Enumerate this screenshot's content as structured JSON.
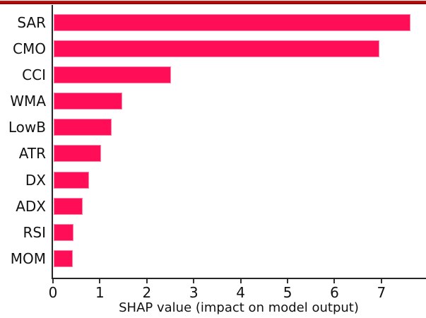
{
  "chart_data": {
    "type": "bar",
    "orientation": "horizontal",
    "title": "",
    "xlabel": "SHAP value (impact on model output)",
    "ylabel": "",
    "categories": [
      "SAR",
      "CMO",
      "CCI",
      "WMA",
      "LowB",
      "ATR",
      "DX",
      "ADX",
      "RSI",
      "MOM"
    ],
    "values": [
      7.62,
      6.95,
      2.52,
      1.48,
      1.25,
      1.03,
      0.77,
      0.63,
      0.44,
      0.42
    ],
    "xlim": [
      0,
      7.95
    ],
    "x_ticks": [
      "0",
      "1",
      "2",
      "3",
      "4",
      "5",
      "6",
      "7"
    ],
    "grid": false,
    "legend": false,
    "bar_color": "#ff0d57",
    "bar_edge_color": "#ff7fa6",
    "axis_color": "#262626",
    "tick_color": "#333333",
    "text_color": "#111111"
  },
  "decorations": {
    "top_rule_gradient_top": "#cf1313",
    "top_rule_gradient_bottom": "#8e0000"
  }
}
